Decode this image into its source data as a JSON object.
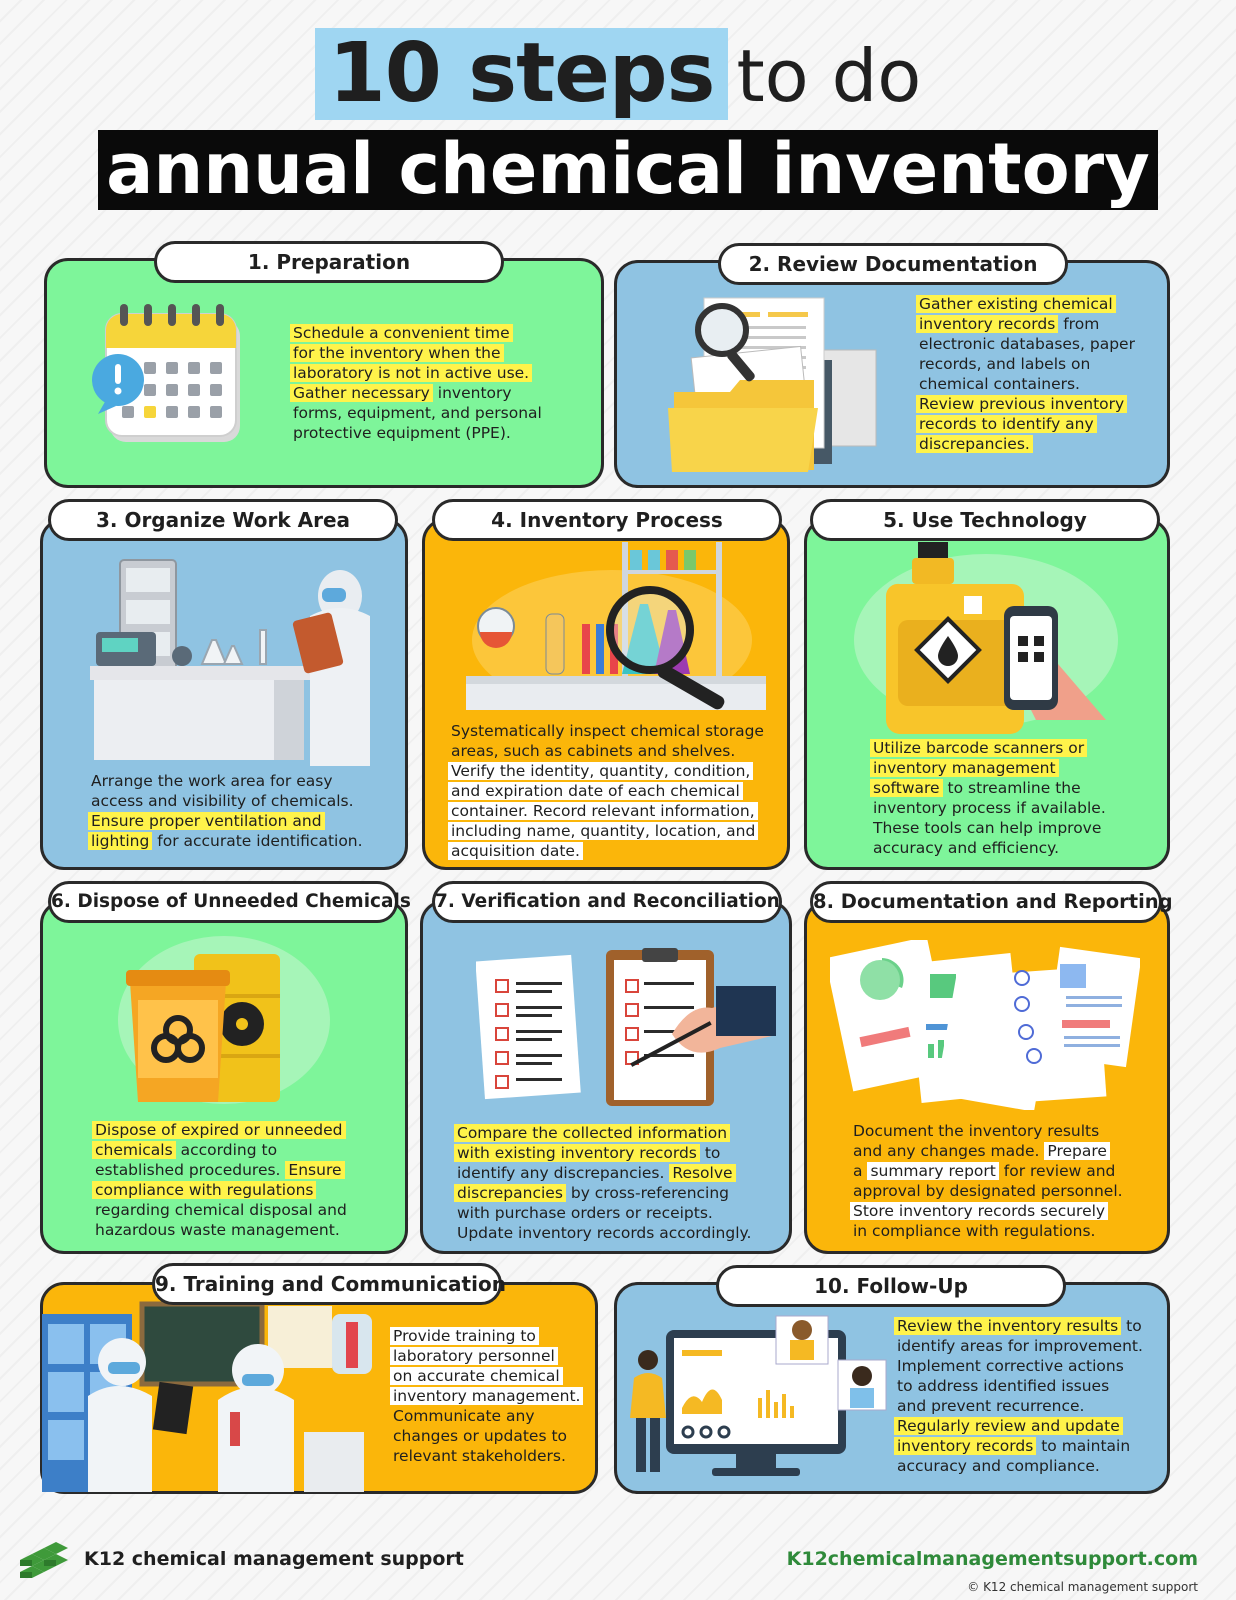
{
  "title": {
    "highlight": "10 steps",
    "rest": "to do",
    "line2": "annual chemical inventory"
  },
  "steps": [
    {
      "label": "1.   Preparation",
      "texts": [
        {
          "t": "Schedule a convenient time",
          "h": "y"
        },
        {
          "t": "for the inventory when the",
          "h": "y"
        },
        {
          "t": "laboratory is not in active use.",
          "h": "y"
        },
        {
          "t": "Gather necessary",
          "h": "y",
          "tail": " inventory"
        },
        {
          "t": "forms, equipment, and personal",
          "h": ""
        },
        {
          "t": "protective equipment (PPE).",
          "h": ""
        }
      ]
    },
    {
      "label": "2. Review Documentation",
      "texts": [
        {
          "t": "Gather existing chemical",
          "h": "y"
        },
        {
          "t": "inventory records",
          "h": "y",
          "tail": " from"
        },
        {
          "t": "electronic databases, paper",
          "h": ""
        },
        {
          "t": "records, and labels on",
          "h": ""
        },
        {
          "t": "chemical containers.",
          "h": ""
        },
        {
          "t": "Review previous inventory",
          "h": "y"
        },
        {
          "t": "records to identify any",
          "h": "y"
        },
        {
          "t": "discrepancies.",
          "h": "y"
        }
      ]
    },
    {
      "label": "3. Organize Work Area",
      "texts": [
        {
          "t": "Arrange the work area  for easy",
          "h": ""
        },
        {
          "t": "access and visibility of chemicals.",
          "h": ""
        },
        {
          "t": "Ensure proper ventilation and",
          "h": "y"
        },
        {
          "t": "lighting",
          "h": "y",
          "tail": " for accurate identification."
        }
      ]
    },
    {
      "label": "4. Inventory Process",
      "texts": [
        {
          "t": "Systematically inspect chemical storage",
          "h": ""
        },
        {
          "t": "areas, such as cabinets and shelves.",
          "h": ""
        },
        {
          "t": "Verify the identity, quantity, condition,",
          "h": "w"
        },
        {
          "t": "and expiration date of each chemical",
          "h": "w"
        },
        {
          "t": "container. Record relevant information,",
          "h": "w"
        },
        {
          "t": "including name, quantity, location, and",
          "h": "w"
        },
        {
          "t": "acquisition date.",
          "h": "w"
        }
      ]
    },
    {
      "label": "5. Use Technology",
      "texts": [
        {
          "t": "Utilize barcode scanners or",
          "h": "y"
        },
        {
          "t": "inventory management",
          "h": "y"
        },
        {
          "t": "software",
          "h": "y",
          "tail": " to streamline the"
        },
        {
          "t": "inventory process if available.",
          "h": ""
        },
        {
          "t": "These tools can help improve",
          "h": ""
        },
        {
          "t": "accuracy and efficiency.",
          "h": ""
        }
      ]
    },
    {
      "label": "6. Dispose of Unneeded Chemicals",
      "texts": [
        {
          "t": "Dispose of expired or unneeded",
          "h": "y"
        },
        {
          "t": "chemicals",
          "h": "y",
          "tail": " according to"
        },
        {
          "t": "established procedures. ",
          "h": "",
          "tail2": "Ensure"
        },
        {
          "t": "compliance with regulations",
          "h": "y"
        },
        {
          "t": "regarding chemical disposal and",
          "h": ""
        },
        {
          "t": "hazardous waste management.",
          "h": ""
        }
      ]
    },
    {
      "label": "7. Verification and Reconciliation",
      "texts": [
        {
          "t": "Compare the collected information",
          "h": "y"
        },
        {
          "t": "with existing inventory records",
          "h": "y",
          "tail": " to"
        },
        {
          "t": "identify any discrepancies. ",
          "h": "",
          "tail2": "Resolve"
        },
        {
          "t": "discrepancies",
          "h": "y",
          "tail": " by cross-referencing"
        },
        {
          "t": "with purchase orders or receipts.",
          "h": ""
        },
        {
          "t": "Update inventory records accordingly.",
          "h": ""
        }
      ]
    },
    {
      "label": "8. Documentation and Reporting",
      "texts": [
        {
          "t": "Document the inventory results",
          "h": ""
        },
        {
          "t": "and any changes made. ",
          "h": "",
          "tail2": "Prepare"
        },
        {
          "t": "a ",
          "h": "",
          "tail2": "summary report",
          "tail": " for review and"
        },
        {
          "t": "approval by designated personnel.",
          "h": ""
        },
        {
          "t": "Store inventory records securely",
          "h": "w"
        },
        {
          "t": "in compliance with regulations.",
          "h": ""
        }
      ]
    },
    {
      "label": "9. Training and Communication",
      "texts": [
        {
          "t": "Provide training to",
          "h": "w"
        },
        {
          "t": "laboratory personnel",
          "h": "w"
        },
        {
          "t": "on accurate chemical",
          "h": "w"
        },
        {
          "t": "inventory management.",
          "h": "w"
        },
        {
          "t": "Communicate any",
          "h": ""
        },
        {
          "t": "changes or updates to",
          "h": ""
        },
        {
          "t": "relevant stakeholders.",
          "h": ""
        }
      ]
    },
    {
      "label": "10. Follow-Up",
      "texts": [
        {
          "t": "Review the inventory results",
          "h": "y",
          "tail": " to"
        },
        {
          "t": "identify areas for improvement.",
          "h": ""
        },
        {
          "t": "Implement corrective actions",
          "h": ""
        },
        {
          "t": "to address identified issues",
          "h": ""
        },
        {
          "t": "and prevent recurrence.",
          "h": ""
        },
        {
          "t": "Regularly review and update",
          "h": "y"
        },
        {
          "t": "inventory records",
          "h": "y",
          "tail": " to maintain"
        },
        {
          "t": "accuracy and compliance.",
          "h": ""
        }
      ]
    }
  ],
  "footer": {
    "name": "K12 chemical management support",
    "url": "K12chemicalmanagementsupport.com",
    "copy": "© K12 chemical management support"
  }
}
